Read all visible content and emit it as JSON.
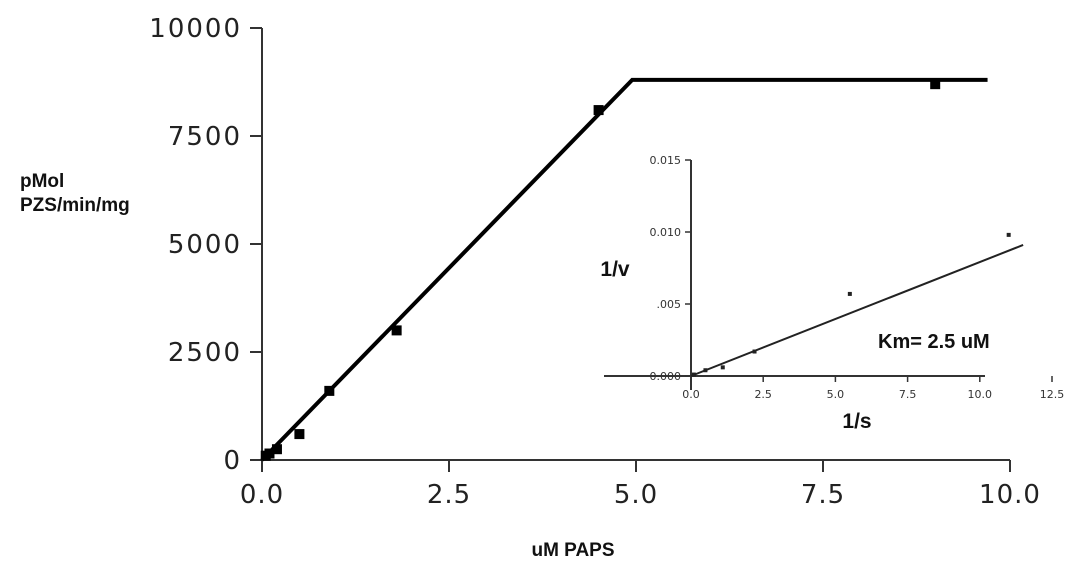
{
  "chart_data": [
    {
      "type": "line",
      "xlabel": "uM PAPS",
      "ylabel": [
        "pMol",
        "PZS/min/mg"
      ],
      "xlim": [
        0,
        10
      ],
      "ylim": [
        0,
        10000
      ],
      "x_ticks": [
        0,
        2.5,
        5,
        7.5,
        10
      ],
      "x_tick_labels": [
        "0.0",
        "2.5",
        "5.0",
        "7.5",
        "10.0"
      ],
      "y_ticks": [
        0,
        2500,
        5000,
        7500,
        10000
      ],
      "y_tick_labels": [
        "0",
        "2500",
        "5000",
        "7500",
        "10000"
      ],
      "series": [
        {
          "kind": "points",
          "x": [
            0.05,
            0.1,
            0.2,
            0.5,
            0.9,
            1.8,
            4.5,
            9.0
          ],
          "y": [
            100,
            150,
            250,
            600,
            1600,
            3000,
            8100,
            8700
          ]
        },
        {
          "kind": "fit",
          "x": [
            0,
            4.95,
            9.7
          ],
          "y": [
            0,
            8800,
            8800
          ]
        }
      ]
    },
    {
      "type": "scatter",
      "inset": true,
      "xlabel": "1/s",
      "ylabel": "1/v",
      "xlim": [
        0,
        12.5
      ],
      "ylim": [
        0,
        0.015
      ],
      "x_ticks": [
        0,
        2.5,
        5,
        7.5,
        10,
        12.5
      ],
      "x_tick_labels": [
        "0.0",
        "2.5",
        "5.0",
        "7.5",
        "10.0",
        "12.5"
      ],
      "y_ticks": [
        0,
        0.005,
        0.01,
        0.015
      ],
      "y_tick_labels": [
        "0.000",
        ".005",
        "0.010",
        "0.015"
      ],
      "series": [
        {
          "kind": "points",
          "x": [
            0.1,
            0.5,
            1.1,
            2.2,
            5.5,
            11.0
          ],
          "y": [
            0.0001,
            0.0004,
            0.0006,
            0.0017,
            0.0057,
            0.0098
          ]
        },
        {
          "kind": "fit",
          "x": [
            0,
            11.5
          ],
          "y": [
            0,
            0.0091
          ]
        }
      ],
      "annotation": "Km= 2.5 uM"
    }
  ]
}
